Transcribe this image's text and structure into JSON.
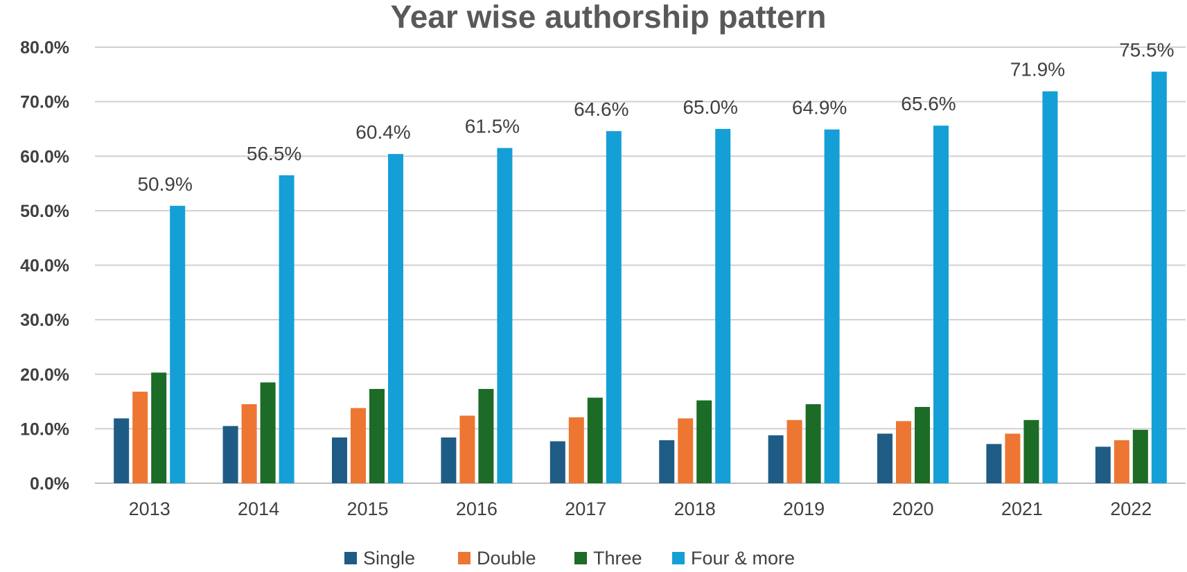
{
  "chart_data": {
    "type": "bar",
    "title": "Year wise authorship pattern",
    "xlabel": "",
    "ylabel": "",
    "ylim": [
      0,
      80
    ],
    "yticks": [
      "0.0%",
      "10.0%",
      "20.0%",
      "30.0%",
      "40.0%",
      "50.0%",
      "60.0%",
      "70.0%",
      "80.0%"
    ],
    "grid": true,
    "legend_position": "bottom",
    "categories": [
      "2013",
      "2014",
      "2015",
      "2016",
      "2017",
      "2018",
      "2019",
      "2020",
      "2021",
      "2022"
    ],
    "series": [
      {
        "name": "Single",
        "color": "#1f5c85",
        "values": [
          11.9,
          10.5,
          8.4,
          8.4,
          7.7,
          7.9,
          8.8,
          9.1,
          7.2,
          6.7
        ]
      },
      {
        "name": "Double",
        "color": "#ed7632",
        "values": [
          16.8,
          14.5,
          13.8,
          12.4,
          12.1,
          11.9,
          11.6,
          11.4,
          9.1,
          7.9
        ]
      },
      {
        "name": "Three",
        "color": "#1c6b27",
        "values": [
          20.3,
          18.5,
          17.3,
          17.3,
          15.7,
          15.2,
          14.5,
          14.0,
          11.6,
          9.8
        ]
      },
      {
        "name": "Four & more",
        "color": "#159fd7",
        "values": [
          50.9,
          56.5,
          60.4,
          61.5,
          64.6,
          65.0,
          64.9,
          65.6,
          71.9,
          75.5
        ]
      }
    ],
    "data_labels": {
      "series": "Four & more",
      "texts": [
        "50.9%",
        "56.5%",
        "60.4%",
        "61.5%",
        "64.6%",
        "65.0%",
        "64.9%",
        "65.6%",
        "71.9%",
        "75.5%"
      ]
    }
  }
}
